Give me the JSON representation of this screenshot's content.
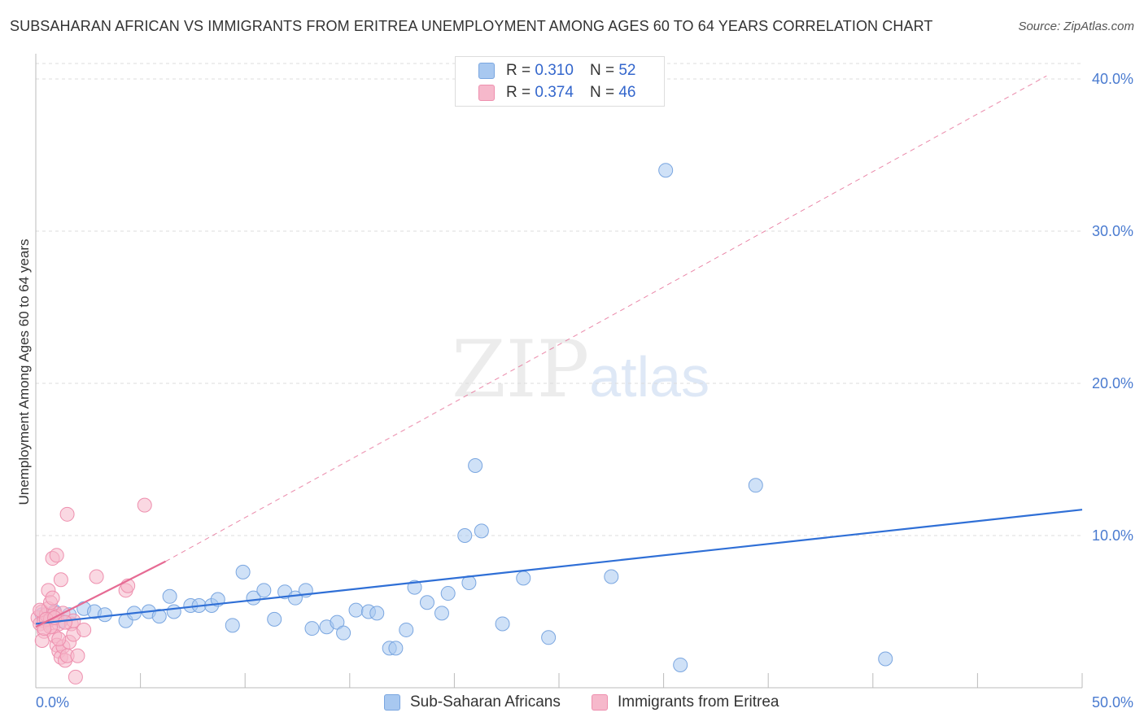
{
  "title": "SUBSAHARAN AFRICAN VS IMMIGRANTS FROM ERITREA UNEMPLOYMENT AMONG AGES 60 TO 64 YEARS CORRELATION CHART",
  "source": "Source: ZipAtlas.com",
  "watermark": {
    "zip": "ZIP",
    "atlas": "atlas"
  },
  "legend": {
    "rows": [
      {
        "r_label": "R =",
        "r_value": "0.310",
        "n_label": "N =",
        "n_value": "52",
        "color": "#a8c8f0"
      },
      {
        "r_label": "R =",
        "r_value": "0.374",
        "n_label": "N =",
        "n_value": "46",
        "color": "#f6b8cb"
      }
    ]
  },
  "bottom_legend": [
    "Sub-Saharan Africans",
    "Immigrants from Eritrea"
  ],
  "chart_data": {
    "type": "scatter",
    "title": "SUBSAHARAN AFRICAN VS IMMIGRANTS FROM ERITREA UNEMPLOYMENT AMONG AGES 60 TO 64 YEARS CORRELATION CHART",
    "xlabel": "",
    "ylabel": "Unemployment Among Ages 60 to 64 years",
    "xlim": [
      0,
      50
    ],
    "ylim": [
      0,
      40
    ],
    "x_tick_labels": [
      "0.0%",
      "50.0%"
    ],
    "y_ticks": [
      10,
      20,
      30,
      40
    ],
    "y_tick_labels": [
      "10.0%",
      "20.0%",
      "30.0%",
      "40.0%"
    ],
    "grid": true,
    "series": [
      {
        "name": "Sub-Saharan Africans",
        "color": "#a8c8f0",
        "stroke": "#7aa6e0",
        "trend_color": "#2f6fd6",
        "trend": {
          "x0": 0,
          "y0": 4.2,
          "x1": 50,
          "y1": 11.7,
          "dashed_to": null
        },
        "points": [
          [
            0.3,
            4.8
          ],
          [
            0.6,
            4.6
          ],
          [
            0.9,
            5.0
          ],
          [
            1.2,
            4.4
          ],
          [
            1.6,
            4.8
          ],
          [
            2.3,
            5.2
          ],
          [
            2.8,
            5.0
          ],
          [
            3.3,
            4.8
          ],
          [
            4.3,
            4.4
          ],
          [
            4.7,
            4.9
          ],
          [
            5.4,
            5.0
          ],
          [
            5.9,
            4.7
          ],
          [
            6.4,
            6.0
          ],
          [
            6.6,
            5.0
          ],
          [
            7.4,
            5.4
          ],
          [
            7.8,
            5.4
          ],
          [
            8.4,
            5.4
          ],
          [
            8.7,
            5.8
          ],
          [
            9.4,
            4.1
          ],
          [
            9.9,
            7.6
          ],
          [
            10.4,
            5.9
          ],
          [
            10.9,
            6.4
          ],
          [
            11.4,
            4.5
          ],
          [
            11.9,
            6.3
          ],
          [
            12.4,
            5.9
          ],
          [
            12.9,
            6.4
          ],
          [
            13.2,
            3.9
          ],
          [
            13.9,
            4.0
          ],
          [
            14.4,
            4.3
          ],
          [
            14.7,
            3.6
          ],
          [
            15.3,
            5.1
          ],
          [
            15.9,
            5.0
          ],
          [
            16.3,
            4.9
          ],
          [
            16.9,
            2.6
          ],
          [
            17.2,
            2.6
          ],
          [
            17.7,
            3.8
          ],
          [
            18.1,
            6.6
          ],
          [
            18.7,
            5.6
          ],
          [
            19.4,
            4.9
          ],
          [
            19.7,
            6.2
          ],
          [
            20.5,
            10.0
          ],
          [
            20.7,
            6.9
          ],
          [
            21.0,
            14.6
          ],
          [
            21.3,
            10.3
          ],
          [
            22.3,
            4.2
          ],
          [
            23.3,
            7.2
          ],
          [
            24.5,
            3.3
          ],
          [
            27.5,
            7.3
          ],
          [
            30.1,
            34.0
          ],
          [
            30.8,
            1.5
          ],
          [
            34.4,
            13.3
          ],
          [
            40.6,
            1.9
          ]
        ]
      },
      {
        "name": "Immigrants from Eritrea",
        "color": "#f6b8cb",
        "stroke": "#ee8fae",
        "trend_color": "#e66b94",
        "trend": {
          "x0": 0,
          "y0": 4.0,
          "x1": 6.2,
          "y1": 8.3,
          "dashed_x1": 48.3,
          "dashed_y1": 40.2
        },
        "points": [
          [
            0.1,
            4.6
          ],
          [
            0.2,
            4.2
          ],
          [
            0.3,
            5.0
          ],
          [
            0.4,
            4.4
          ],
          [
            0.5,
            4.8
          ],
          [
            0.6,
            5.2
          ],
          [
            0.7,
            4.5
          ],
          [
            0.8,
            4.0
          ],
          [
            0.9,
            4.9
          ],
          [
            1.0,
            4.7
          ],
          [
            1.1,
            4.2
          ],
          [
            0.2,
            5.1
          ],
          [
            0.4,
            3.7
          ],
          [
            0.6,
            6.4
          ],
          [
            0.7,
            5.6
          ],
          [
            0.8,
            5.9
          ],
          [
            0.9,
            3.4
          ],
          [
            1.0,
            2.8
          ],
          [
            1.1,
            2.4
          ],
          [
            1.2,
            2.0
          ],
          [
            1.3,
            2.7
          ],
          [
            1.4,
            1.8
          ],
          [
            1.5,
            2.1
          ],
          [
            1.6,
            3.0
          ],
          [
            1.7,
            4.2
          ],
          [
            1.8,
            3.5
          ],
          [
            1.9,
            0.7
          ],
          [
            2.0,
            2.1
          ],
          [
            0.8,
            8.5
          ],
          [
            1.0,
            8.7
          ],
          [
            1.2,
            7.1
          ],
          [
            1.5,
            11.4
          ],
          [
            2.9,
            7.3
          ],
          [
            4.3,
            6.4
          ],
          [
            4.4,
            6.7
          ],
          [
            5.2,
            12.0
          ],
          [
            2.3,
            3.8
          ],
          [
            0.3,
            3.1
          ],
          [
            0.5,
            4.5
          ],
          [
            1.3,
            4.9
          ],
          [
            0.7,
            4.0
          ],
          [
            1.8,
            4.4
          ],
          [
            0.4,
            3.9
          ],
          [
            0.9,
            4.6
          ],
          [
            1.1,
            3.2
          ],
          [
            1.4,
            4.3
          ]
        ]
      }
    ]
  }
}
